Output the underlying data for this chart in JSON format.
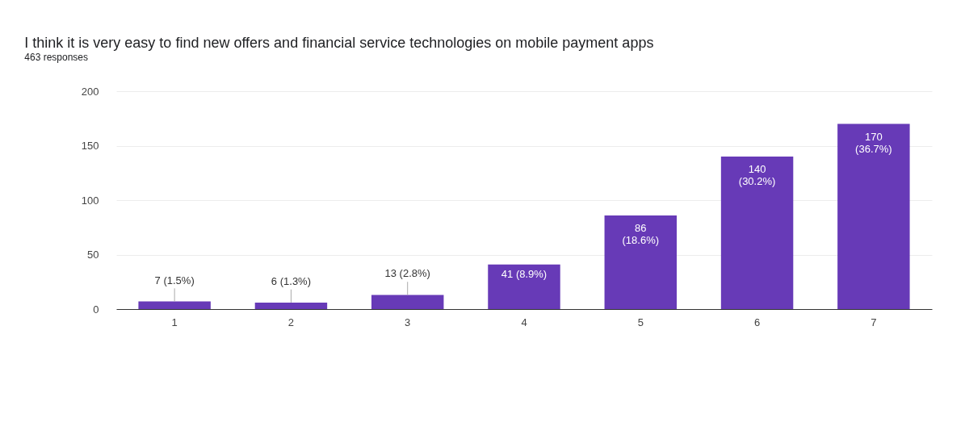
{
  "chart_data": {
    "type": "bar",
    "title": "I think it is very easy to find new offers and financial service technologies on  mobile payment apps",
    "subtitle": "463 responses",
    "categories": [
      "1",
      "2",
      "3",
      "4",
      "5",
      "6",
      "7"
    ],
    "values": [
      7,
      6,
      13,
      41,
      86,
      140,
      170
    ],
    "value_labels": [
      "7 (1.5%)",
      "6 (1.3%)",
      "13 (2.8%)",
      "41 (8.9%)",
      "86 (18.6%)",
      "140 (30.2%)",
      "170 (36.7%)"
    ],
    "color": "#673ab7",
    "ylim": [
      0,
      200
    ],
    "yticks": [
      0,
      50,
      100,
      150,
      200
    ],
    "grid": "y"
  }
}
